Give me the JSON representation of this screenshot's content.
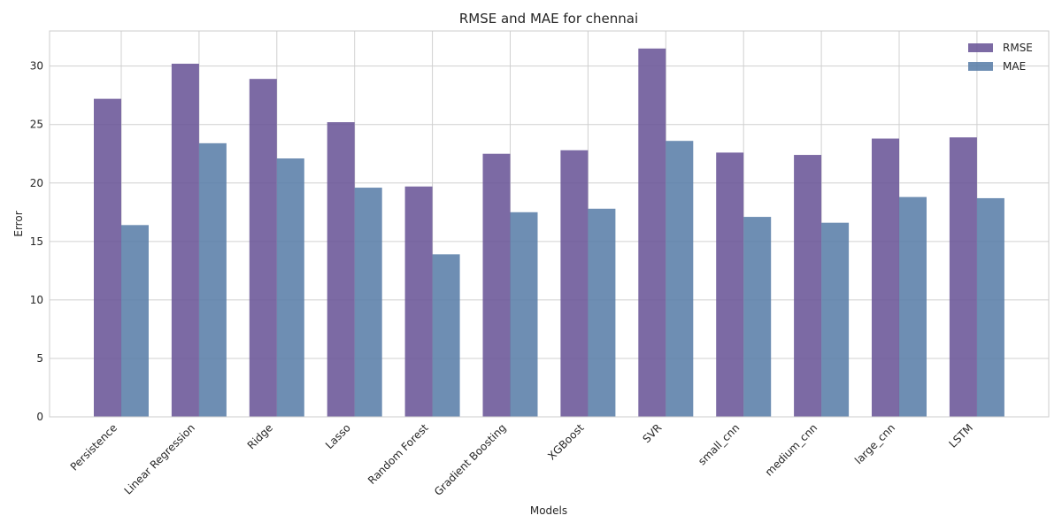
{
  "chart_data": {
    "type": "bar",
    "title": "RMSE and MAE for chennai",
    "xlabel": "Models",
    "ylabel": "Error",
    "ylim": [
      0,
      33
    ],
    "yticks": [
      0,
      5,
      10,
      15,
      20,
      25,
      30
    ],
    "grid": true,
    "legend_position": "top-right",
    "categories": [
      "Persistence",
      "Linear Regression",
      "Ridge",
      "Lasso",
      "Random Forest",
      "Gradient Boosting",
      "XGBoost",
      "SVR",
      "small_cnn",
      "medium_cnn",
      "large_cnn",
      "LSTM"
    ],
    "series": [
      {
        "name": "RMSE",
        "color": "#6a5597",
        "values": [
          27.2,
          30.2,
          28.9,
          25.2,
          19.7,
          22.5,
          22.8,
          31.5,
          22.6,
          22.4,
          23.8,
          23.9
        ]
      },
      {
        "name": "MAE",
        "color": "#5a7ea9",
        "values": [
          16.4,
          23.4,
          22.1,
          19.6,
          13.9,
          17.5,
          17.8,
          23.6,
          17.1,
          16.6,
          18.8,
          18.7
        ]
      }
    ]
  }
}
